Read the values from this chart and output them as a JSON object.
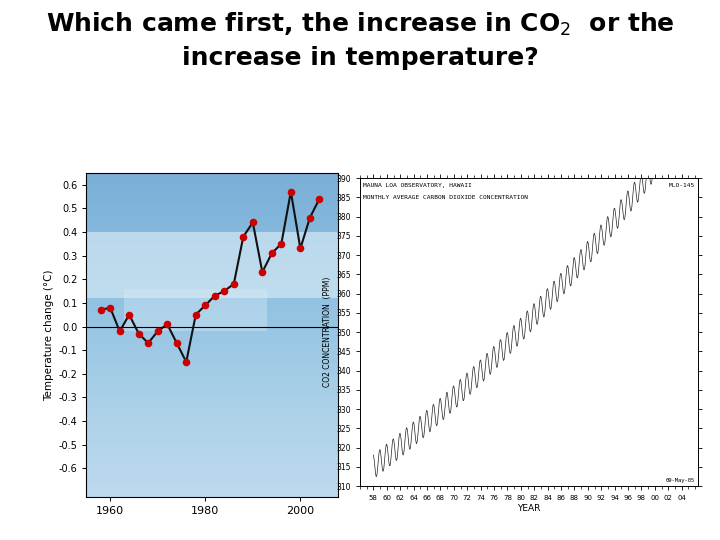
{
  "title_fontsize": 18,
  "title_fontweight": "bold",
  "bg_color": "#ffffff",
  "left_chart": {
    "years": [
      1958,
      1960,
      1962,
      1964,
      1966,
      1968,
      1970,
      1972,
      1974,
      1976,
      1978,
      1980,
      1982,
      1984,
      1986,
      1988,
      1990,
      1992,
      1994,
      1996,
      1998,
      2000,
      2002,
      2004
    ],
    "temps": [
      0.07,
      0.08,
      -0.02,
      0.05,
      -0.03,
      -0.07,
      -0.02,
      0.01,
      -0.07,
      -0.15,
      0.05,
      0.09,
      0.13,
      0.15,
      0.18,
      0.38,
      0.44,
      0.23,
      0.31,
      0.35,
      0.57,
      0.33,
      0.46,
      0.54
    ],
    "ylim": [
      -0.72,
      0.65
    ],
    "yticks": [
      -0.6,
      -0.5,
      -0.4,
      -0.3,
      -0.2,
      -0.1,
      0.0,
      0.1,
      0.2,
      0.3,
      0.4,
      0.5,
      0.6
    ],
    "xticks": [
      1960,
      1980,
      2000
    ],
    "ylabel": "Temperature change (°C)",
    "line_color": "#111111",
    "dot_color": "#cc0000",
    "zero_line_color": "#000000",
    "bg_sky_top": "#b8d8ee",
    "bg_sky_bottom": "#8ab8d8"
  },
  "right_chart": {
    "title1": "MAUNA LOA OBSERVATORY, HAWAII",
    "title2": "MONTHLY AVERAGE CARBON DIOXIDE CONCENTRATION",
    "tag": "MLO-145",
    "xlabel": "YEAR",
    "ylabel": "CO2 CONCENTRATION  (PPM)",
    "ylim": [
      310,
      390
    ],
    "yticks": [
      310,
      315,
      320,
      325,
      330,
      335,
      340,
      345,
      350,
      355,
      360,
      365,
      370,
      375,
      380,
      385,
      390
    ],
    "date_stamp": "09-May-05",
    "bg_color": "#ffffff"
  }
}
